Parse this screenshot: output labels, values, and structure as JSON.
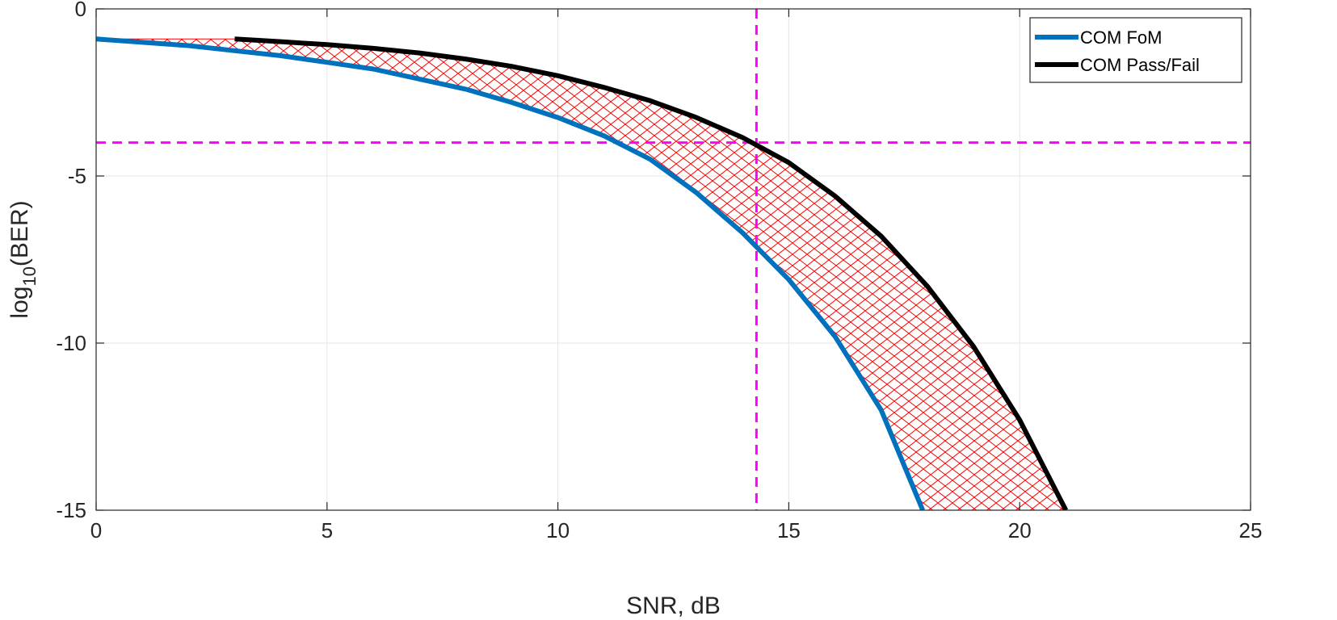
{
  "chart_data": {
    "type": "line",
    "xlabel": "SNR, dB",
    "ylabel": {
      "prefix": "log",
      "subscript": "10",
      "suffix": "(BER)"
    },
    "xlim": [
      0,
      25
    ],
    "ylim": [
      -15,
      0
    ],
    "xticks": [
      0,
      5,
      10,
      15,
      20,
      25
    ],
    "yticks": [
      0,
      -5,
      -10,
      -15
    ],
    "xtick_labels": [
      "0",
      "5",
      "10",
      "15",
      "20",
      "25"
    ],
    "ytick_labels": [
      "0",
      "-5",
      "-10",
      "-15"
    ],
    "grid": true,
    "legend_position": "top-right",
    "series": [
      {
        "name": "COM FoM",
        "color": "#0072bd",
        "x": [
          0,
          1,
          2,
          3,
          4,
          5,
          6,
          7,
          8,
          9,
          10,
          11,
          12,
          13,
          14,
          15,
          16,
          17,
          17.9
        ],
        "y": [
          -0.9,
          -1.0,
          -1.1,
          -1.25,
          -1.4,
          -1.6,
          -1.8,
          -2.1,
          -2.4,
          -2.8,
          -3.25,
          -3.8,
          -4.5,
          -5.5,
          -6.7,
          -8.1,
          -9.8,
          -12.0,
          -15.0
        ]
      },
      {
        "name": "COM Pass/Fail",
        "color": "#000000",
        "x": [
          3,
          4,
          5,
          6,
          7,
          8,
          9,
          10,
          11,
          12,
          13,
          14,
          15,
          16,
          17,
          18,
          19,
          20,
          21
        ],
        "y": [
          -0.9,
          -0.98,
          -1.07,
          -1.18,
          -1.32,
          -1.5,
          -1.72,
          -2.0,
          -2.35,
          -2.75,
          -3.25,
          -3.85,
          -4.6,
          -5.6,
          -6.8,
          -8.3,
          -10.1,
          -12.3,
          -15.0
        ]
      }
    ],
    "shaded_region": {
      "between": [
        "COM FoM",
        "COM Pass/Fail"
      ],
      "color": "#ff0000",
      "pattern": "crosshatch"
    },
    "reference_lines": [
      {
        "orientation": "vertical",
        "x": 14.3,
        "color": "#ff00ff",
        "style": "dashed"
      },
      {
        "orientation": "horizontal",
        "y": -4,
        "color": "#ff00ff",
        "style": "dashed"
      }
    ]
  }
}
